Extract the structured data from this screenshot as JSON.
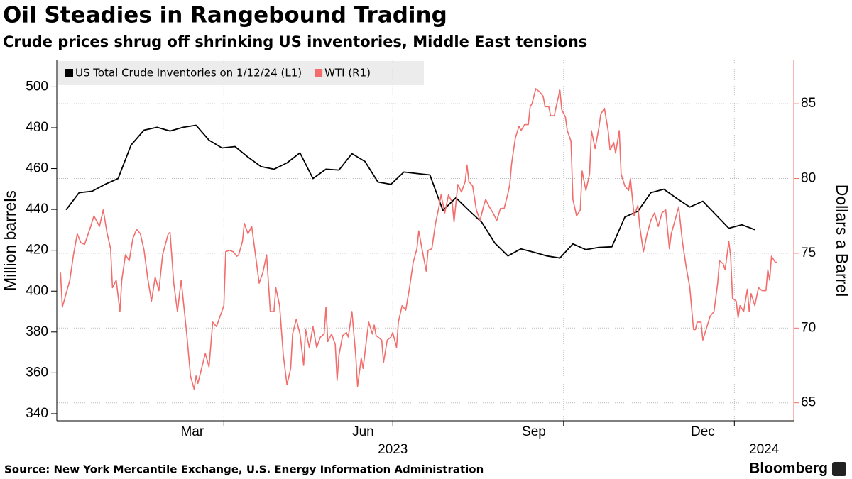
{
  "chart_data": {
    "type": "line",
    "title": "Oil Steadies in Rangebound Trading",
    "subtitle": "Crude prices shrug off shrinking US inventories, Middle East tensions",
    "source": "Source: New York Mercantile Exchange, U.S. Energy Information Administration",
    "brand": "Bloomberg",
    "ylabel": "Million barrels",
    "y2label": "Dollars a Barrel",
    "legend": "upper left",
    "grid": true,
    "xlim": [
      "2023-01-01",
      "2024-02-02"
    ],
    "xticks": [
      {
        "value": "2023-03-15",
        "label": "Mar"
      },
      {
        "value": "2023-06-15",
        "label": "Jun"
      },
      {
        "value": "2023-09-15",
        "label": "Sep"
      },
      {
        "value": "2023-12-15",
        "label": "Dec"
      }
    ],
    "xgrid": [
      "2023-04-01",
      "2023-07-01",
      "2023-10-01",
      "2024-01-01"
    ],
    "years": [
      {
        "value": "2023-07-01",
        "label": "2023"
      },
      {
        "value": "2024-01-17",
        "label": "2024"
      }
    ],
    "ylim": [
      336.5,
      513
    ],
    "yticks": [
      340,
      360,
      380,
      400,
      420,
      440,
      460,
      480,
      500
    ],
    "y2lim": [
      63.8,
      87.9
    ],
    "y2ticks": [
      65,
      70,
      75,
      80,
      85
    ],
    "series": [
      {
        "name": "US Total Crude Inventories on 1/12/24 (L1)",
        "color": "#000000",
        "axis": "y",
        "x": [
          "2023-01-06",
          "2023-01-13",
          "2023-01-20",
          "2023-01-27",
          "2023-02-03",
          "2023-02-10",
          "2023-02-17",
          "2023-02-24",
          "2023-03-03",
          "2023-03-10",
          "2023-03-17",
          "2023-03-24",
          "2023-03-31",
          "2023-04-07",
          "2023-04-14",
          "2023-04-21",
          "2023-04-28",
          "2023-05-05",
          "2023-05-12",
          "2023-05-19",
          "2023-05-26",
          "2023-06-02",
          "2023-06-09",
          "2023-06-16",
          "2023-06-23",
          "2023-06-30",
          "2023-07-07",
          "2023-07-14",
          "2023-07-21",
          "2023-07-28",
          "2023-08-04",
          "2023-08-11",
          "2023-08-18",
          "2023-08-25",
          "2023-09-01",
          "2023-09-08",
          "2023-09-15",
          "2023-09-22",
          "2023-09-29",
          "2023-10-06",
          "2023-10-13",
          "2023-10-20",
          "2023-10-27",
          "2023-11-03",
          "2023-11-10",
          "2023-11-17",
          "2023-11-24",
          "2023-12-01",
          "2023-12-08",
          "2023-12-15",
          "2023-12-22",
          "2023-12-29",
          "2024-01-05",
          "2024-01-12"
        ],
        "values": [
          439.8,
          448.2,
          448.9,
          452.3,
          455.1,
          471.5,
          478.8,
          480.2,
          478.4,
          480.2,
          481.2,
          473.9,
          470.1,
          470.8,
          465.6,
          461.0,
          459.7,
          462.8,
          467.7,
          455.1,
          459.7,
          459.3,
          467.3,
          463.5,
          453.4,
          452.3,
          458.3,
          457.6,
          456.9,
          439.5,
          445.7,
          439.5,
          433.6,
          423.5,
          417.2,
          420.7,
          419.0,
          417.2,
          416.2,
          423.1,
          420.3,
          421.4,
          421.7,
          436.3,
          439.1,
          448.2,
          449.9,
          445.4,
          441.2,
          444.0,
          437.4,
          430.8,
          432.5,
          430.1
        ]
      },
      {
        "name": "WTI (R1)",
        "color": "#f26d6b",
        "axis": "y2",
        "x": [
          "2023-01-03",
          "2023-01-04",
          "2023-01-06",
          "2023-01-08",
          "2023-01-10",
          "2023-01-12",
          "2023-01-14",
          "2023-01-16",
          "2023-01-19",
          "2023-01-21",
          "2023-01-24",
          "2023-01-26",
          "2023-01-28",
          "2023-01-30",
          "2023-01-31",
          "2023-02-02",
          "2023-02-04",
          "2023-02-05",
          "2023-02-07",
          "2023-02-09",
          "2023-02-11",
          "2023-02-13",
          "2023-02-15",
          "2023-02-17",
          "2023-02-19",
          "2023-02-21",
          "2023-02-23",
          "2023-02-25",
          "2023-02-27",
          "2023-03-02",
          "2023-03-03",
          "2023-03-05",
          "2023-03-07",
          "2023-03-09",
          "2023-03-10",
          "2023-03-12",
          "2023-03-14",
          "2023-03-16",
          "2023-03-17",
          "2023-03-18",
          "2023-03-20",
          "2023-03-22",
          "2023-03-24",
          "2023-03-26",
          "2023-03-28",
          "2023-03-30",
          "2023-04-01",
          "2023-04-02",
          "2023-04-04",
          "2023-04-06",
          "2023-04-08",
          "2023-04-09",
          "2023-04-11",
          "2023-04-12",
          "2023-04-14",
          "2023-04-16",
          "2023-04-18",
          "2023-04-20",
          "2023-04-22",
          "2023-04-24",
          "2023-04-26",
          "2023-04-28",
          "2023-04-29",
          "2023-05-01",
          "2023-05-03",
          "2023-05-05",
          "2023-05-07",
          "2023-05-08",
          "2023-05-10",
          "2023-05-12",
          "2023-05-14",
          "2023-05-15",
          "2023-05-17",
          "2023-05-19",
          "2023-05-21",
          "2023-05-23",
          "2023-05-25",
          "2023-05-26",
          "2023-05-27",
          "2023-05-29",
          "2023-05-31",
          "2023-06-01",
          "2023-06-02",
          "2023-06-04",
          "2023-06-06",
          "2023-06-07",
          "2023-06-09",
          "2023-06-11",
          "2023-06-12",
          "2023-06-14",
          "2023-06-15",
          "2023-06-17",
          "2023-06-18",
          "2023-06-20",
          "2023-06-21",
          "2023-06-22",
          "2023-06-25",
          "2023-06-26",
          "2023-06-28",
          "2023-06-30",
          "2023-07-01",
          "2023-07-03",
          "2023-07-04",
          "2023-07-06",
          "2023-07-08",
          "2023-07-10",
          "2023-07-12",
          "2023-07-14",
          "2023-07-15",
          "2023-07-17",
          "2023-07-19",
          "2023-07-20",
          "2023-07-22",
          "2023-07-24",
          "2023-07-26",
          "2023-07-27",
          "2023-07-29",
          "2023-07-31",
          "2023-08-02",
          "2023-08-03",
          "2023-08-05",
          "2023-08-07",
          "2023-08-09",
          "2023-08-10",
          "2023-08-11",
          "2023-08-13",
          "2023-08-15",
          "2023-08-17",
          "2023-08-19",
          "2023-08-20",
          "2023-08-22",
          "2023-08-24",
          "2023-08-26",
          "2023-08-28",
          "2023-08-30",
          "2023-09-01",
          "2023-09-02",
          "2023-09-03",
          "2023-09-05",
          "2023-09-07",
          "2023-09-08",
          "2023-09-10",
          "2023-09-12",
          "2023-09-13",
          "2023-09-14",
          "2023-09-16",
          "2023-09-18",
          "2023-09-20",
          "2023-09-21",
          "2023-09-23",
          "2023-09-24",
          "2023-09-26",
          "2023-09-27",
          "2023-09-29",
          "2023-09-30",
          "2023-10-02",
          "2023-10-03",
          "2023-10-05",
          "2023-10-06",
          "2023-10-08",
          "2023-10-10",
          "2023-10-11",
          "2023-10-13",
          "2023-10-15",
          "2023-10-16",
          "2023-10-18",
          "2023-10-20",
          "2023-10-21",
          "2023-10-23",
          "2023-10-25",
          "2023-10-26",
          "2023-10-28",
          "2023-10-29",
          "2023-10-31",
          "2023-11-01",
          "2023-11-03",
          "2023-11-05",
          "2023-11-06",
          "2023-11-08",
          "2023-11-10",
          "2023-11-11",
          "2023-11-13",
          "2023-11-15",
          "2023-11-17",
          "2023-11-19",
          "2023-11-21",
          "2023-11-23",
          "2023-11-25",
          "2023-11-27",
          "2023-11-28",
          "2023-11-30",
          "2023-12-02",
          "2023-12-04",
          "2023-12-06",
          "2023-12-08",
          "2023-12-10",
          "2023-12-11",
          "2023-12-12",
          "2023-12-14",
          "2023-12-15",
          "2023-12-17",
          "2023-12-19",
          "2023-12-21",
          "2023-12-23",
          "2023-12-24",
          "2023-12-26",
          "2023-12-27",
          "2023-12-29",
          "2023-12-30",
          "2023-12-31",
          "2024-01-02",
          "2024-01-03",
          "2024-01-04",
          "2024-01-06",
          "2024-01-08",
          "2024-01-09",
          "2024-01-10",
          "2024-01-12",
          "2024-01-14",
          "2024-01-16",
          "2024-01-18",
          "2024-01-19",
          "2024-01-20",
          "2024-01-21",
          "2024-01-23",
          "2024-01-24"
        ],
        "values": [
          73.7,
          71.4,
          72.3,
          73.2,
          74.9,
          76.3,
          75.7,
          75.6,
          76.7,
          77.5,
          76.8,
          77.9,
          76.4,
          75.3,
          72.7,
          73.2,
          71.1,
          73.2,
          74.9,
          74.5,
          76.0,
          76.6,
          76.3,
          75.2,
          73.3,
          71.8,
          73.4,
          72.5,
          74.9,
          76.3,
          76.4,
          73.0,
          71.1,
          73.2,
          72.0,
          69.6,
          66.8,
          65.9,
          66.8,
          66.3,
          67.3,
          68.3,
          67.4,
          70.4,
          70.1,
          70.8,
          71.5,
          75.1,
          75.2,
          75.1,
          74.8,
          74.9,
          75.8,
          77.0,
          76.3,
          76.8,
          74.9,
          73.0,
          73.7,
          74.9,
          71.1,
          71.1,
          72.7,
          71.5,
          68.2,
          66.2,
          67.3,
          69.6,
          70.6,
          69.6,
          67.5,
          69.9,
          68.7,
          70.1,
          68.7,
          69.4,
          69.6,
          71.4,
          69.1,
          69.6,
          68.9,
          66.5,
          68.2,
          69.5,
          69.7,
          69.4,
          71.1,
          68.2,
          66.1,
          68.0,
          67.3,
          69.4,
          70.4,
          69.6,
          70.2,
          69.5,
          69.2,
          67.7,
          69.2,
          69.4,
          69.7,
          68.7,
          70.4,
          71.5,
          71.2,
          72.7,
          74.4,
          75.3,
          76.5,
          75.1,
          73.8,
          75.2,
          75.3,
          77.0,
          78.2,
          78.9,
          77.7,
          78.9,
          78.4,
          77.1,
          79.6,
          79.1,
          79.8,
          80.9,
          79.8,
          79.5,
          77.9,
          77.2,
          78.2,
          78.6,
          78.1,
          77.7,
          77.2,
          78.0,
          78.0,
          79.0,
          79.6,
          81.0,
          82.7,
          83.5,
          83.2,
          83.6,
          83.6,
          84.8,
          85.0,
          86.0,
          85.8,
          85.5,
          84.8,
          84.8,
          84.2,
          84.2,
          84.8,
          85.9,
          84.6,
          84.1,
          83.2,
          82.5,
          78.6,
          77.5,
          77.9,
          80.5,
          79.2,
          80.3,
          83.2,
          82.0,
          83.4,
          84.3,
          84.7,
          83.2,
          81.9,
          82.4,
          81.7,
          83.2,
          80.3,
          79.5,
          79.2,
          80.0,
          77.5,
          78.2,
          76.8,
          75.1,
          76.3,
          77.2,
          77.7,
          76.8,
          77.7,
          77.9,
          75.3,
          76.3,
          77.2,
          78.1,
          75.8,
          74.1,
          72.7,
          69.9,
          69.9,
          70.4,
          70.4,
          69.2,
          70.0,
          70.8,
          71.1,
          73.0,
          74.5,
          74.3,
          73.9,
          75.8,
          74.8,
          72.0,
          71.8,
          70.7,
          71.5,
          71.1,
          72.6,
          71.1,
          72.3,
          71.5,
          72.7,
          72.5,
          72.5,
          73.9,
          73.2,
          74.8,
          74.4,
          74.4
        ]
      }
    ]
  }
}
